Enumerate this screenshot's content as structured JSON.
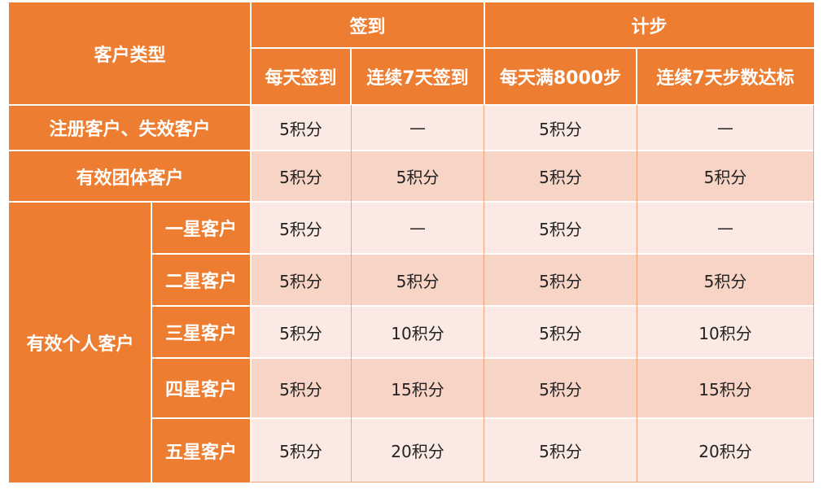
{
  "header": {
    "customer_type": "客户类型",
    "checkin": "签到",
    "steps": "计步",
    "daily_checkin": "每天签到",
    "checkin_7_days": "连续7天签到",
    "daily_8000_steps": "每天满8000步",
    "steps_7_days": "连续7天步数达标"
  },
  "rows": {
    "registered": {
      "label": "注册客户、失效客户",
      "daily_checkin": "5积分",
      "checkin_7_days": "—",
      "daily_8000_steps": "5积分",
      "steps_7_days": "—"
    },
    "group": {
      "label": "有效团体客户",
      "daily_checkin": "5积分",
      "checkin_7_days": "5积分",
      "daily_8000_steps": "5积分",
      "steps_7_days": "5积分"
    },
    "individual": {
      "label": "有效个人客户",
      "stars": [
        {
          "label": "一星客户",
          "daily_checkin": "5积分",
          "checkin_7_days": "—",
          "daily_8000_steps": "5积分",
          "steps_7_days": "—"
        },
        {
          "label": "二星客户",
          "daily_checkin": "5积分",
          "checkin_7_days": "5积分",
          "daily_8000_steps": "5积分",
          "steps_7_days": "5积分"
        },
        {
          "label": "三星客户",
          "daily_checkin": "5积分",
          "checkin_7_days": "10积分",
          "daily_8000_steps": "5积分",
          "steps_7_days": "10积分"
        },
        {
          "label": "四星客户",
          "daily_checkin": "5积分",
          "checkin_7_days": "15积分",
          "daily_8000_steps": "5积分",
          "steps_7_days": "15积分"
        },
        {
          "label": "五星客户",
          "daily_checkin": "5积分",
          "checkin_7_days": "20积分",
          "daily_8000_steps": "5积分",
          "steps_7_days": "20积分"
        }
      ]
    }
  },
  "colors": {
    "header_orange": "#ED7D31",
    "row_light": "#FBEAE4",
    "row_dark": "#F7D4C6"
  }
}
